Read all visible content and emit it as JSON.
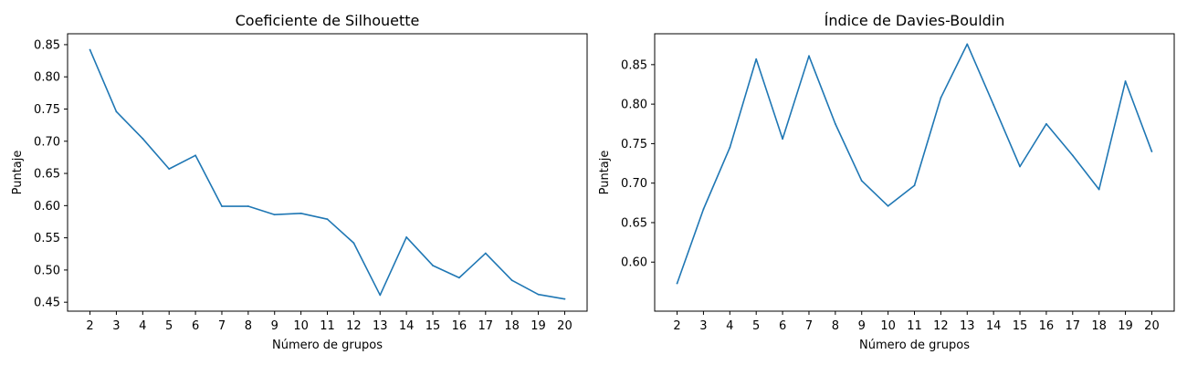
{
  "chart_data": [
    {
      "type": "line",
      "title": "Coeficiente de Silhouette",
      "xlabel": "Número de grupos",
      "ylabel": "Puntaje",
      "x": [
        2,
        3,
        4,
        5,
        6,
        7,
        8,
        9,
        10,
        11,
        12,
        13,
        14,
        15,
        16,
        17,
        18,
        19,
        20
      ],
      "series": [
        {
          "values": [
            0.842,
            0.746,
            0.704,
            0.657,
            0.678,
            0.599,
            0.599,
            0.586,
            0.588,
            0.579,
            0.542,
            0.461,
            0.551,
            0.507,
            0.488,
            0.526,
            0.484,
            0.462,
            0.455
          ],
          "color": "#1f77b4"
        }
      ],
      "xlim": [
        1.15,
        20.85
      ],
      "ylim": [
        0.4361,
        0.8669
      ],
      "yticks": [
        "0.45",
        "0.50",
        "0.55",
        "0.60",
        "0.65",
        "0.70",
        "0.75",
        "0.80",
        "0.85"
      ],
      "grid": false
    },
    {
      "type": "line",
      "title": "Índice de Davies-Bouldin",
      "xlabel": "Número de grupos",
      "ylabel": "Puntaje",
      "x": [
        2,
        3,
        4,
        5,
        6,
        7,
        8,
        9,
        10,
        11,
        12,
        13,
        14,
        15,
        16,
        17,
        18,
        19,
        20
      ],
      "series": [
        {
          "values": [
            0.573,
            0.667,
            0.745,
            0.857,
            0.756,
            0.861,
            0.775,
            0.703,
            0.671,
            0.697,
            0.808,
            0.876,
            0.799,
            0.721,
            0.775,
            0.735,
            0.692,
            0.829,
            0.74
          ],
          "color": "#1f77b4"
        }
      ],
      "xlim": [
        1.15,
        20.85
      ],
      "ylim": [
        0.5379,
        0.8891
      ],
      "yticks": [
        "0.60",
        "0.65",
        "0.70",
        "0.75",
        "0.80",
        "0.85"
      ],
      "grid": false
    }
  ]
}
